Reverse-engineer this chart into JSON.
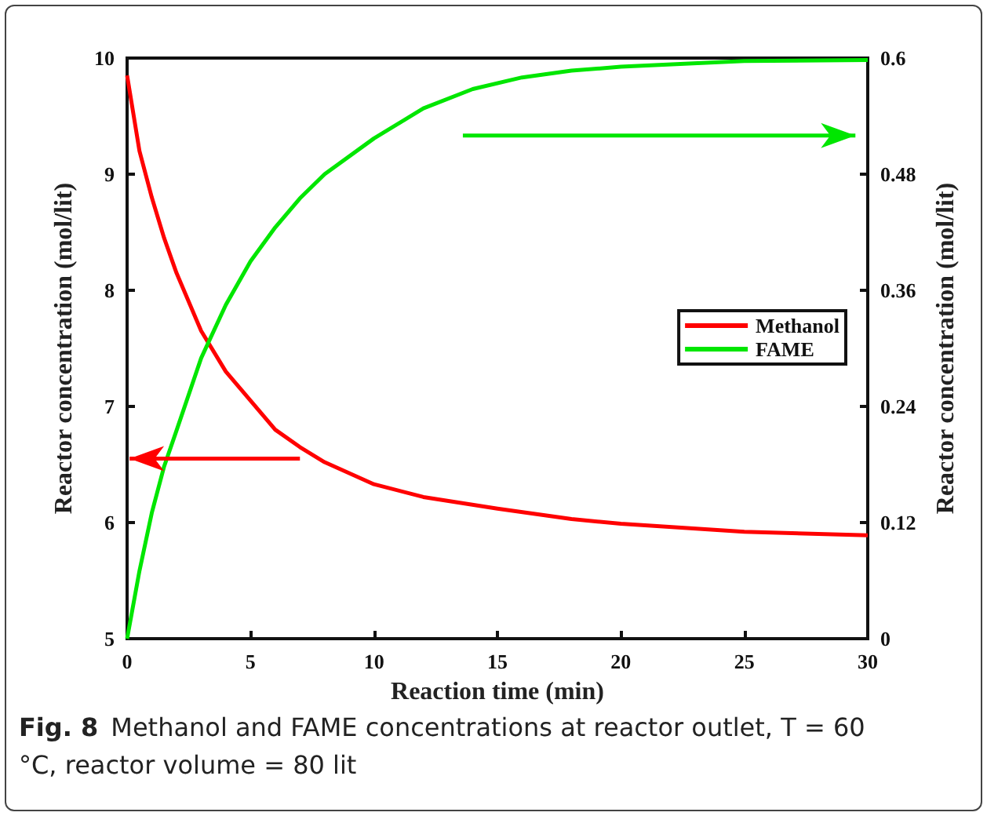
{
  "chart_data": {
    "type": "line",
    "xlabel": "Reaction time (min)",
    "ylabel": "Reactor concentration (mol/lit)",
    "y2label": "Reactor concentration (mol/lit)",
    "annotations": [
      "Fig. 8",
      "Methanol and FAME concentrations at reactor outlet, T = 60 °C, reactor volume = 80 lit"
    ],
    "xlim": [
      0,
      30
    ],
    "xticks": [
      0,
      5,
      10,
      15,
      20,
      25,
      30
    ],
    "ylim": [
      5,
      10
    ],
    "yticks": [
      5,
      6,
      7,
      8,
      9,
      10
    ],
    "y2lim": [
      0,
      0.6
    ],
    "y2ticks": [
      0,
      0.12,
      0.24,
      0.36,
      0.48,
      0.6
    ],
    "grid": false,
    "legend": "right",
    "marker": "none",
    "line_style": "solid",
    "series": [
      {
        "name": "Methanol",
        "color": "#ff0000",
        "x": [
          0,
          0.5,
          1,
          1.5,
          2,
          3,
          4,
          5,
          6,
          7,
          8,
          10,
          12,
          15,
          18,
          20,
          25,
          30
        ],
        "values": [
          9.85,
          9.2,
          8.8,
          8.45,
          8.15,
          7.65,
          7.3,
          7.05,
          6.8,
          6.65,
          6.52,
          6.33,
          6.22,
          6.12,
          6.03,
          5.99,
          5.92,
          5.89
        ]
      },
      {
        "name": "FAME",
        "color": "#00e600",
        "axis": "y2",
        "x": [
          0,
          0.5,
          1,
          1.5,
          2,
          3,
          4,
          5,
          6,
          7,
          8,
          10,
          12,
          14,
          16,
          18,
          20,
          25,
          30
        ],
        "values": [
          0,
          0.07,
          0.13,
          0.178,
          0.215,
          0.29,
          0.345,
          0.39,
          0.425,
          0.455,
          0.48,
          0.517,
          0.548,
          0.568,
          0.58,
          0.587,
          0.591,
          0.597,
          0.598
        ]
      }
    ]
  }
}
